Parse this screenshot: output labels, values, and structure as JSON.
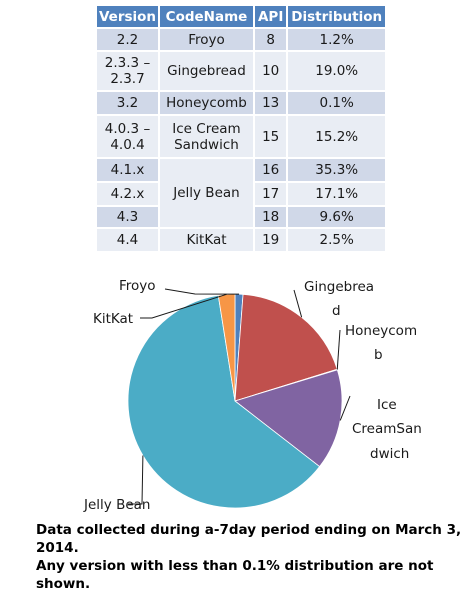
{
  "table": {
    "headers": [
      "Version",
      "CodeName",
      "API",
      "Distribution"
    ],
    "rows": [
      {
        "version": "2.2",
        "codename": "Froyo",
        "api": "8",
        "distribution": "1.2%"
      },
      {
        "version": "2.3.3 –\n2.3.7",
        "codename": "Gingebread",
        "api": "10",
        "distribution": "19.0%"
      },
      {
        "version": "3.2",
        "codename": "Honeycomb",
        "api": "13",
        "distribution": "0.1%"
      },
      {
        "version": "4.0.3 –\n4.0.4",
        "codename": "Ice Cream\nSandwich",
        "api": "15",
        "distribution": "15.2%"
      },
      {
        "version": "4.1.x",
        "codename": "Jelly Bean",
        "api": "16",
        "distribution": "35.3%"
      },
      {
        "version": "4.2.x",
        "codename": "",
        "api": "17",
        "distribution": "17.1%"
      },
      {
        "version": "4.3",
        "codename": "",
        "api": "18",
        "distribution": "9.6%"
      },
      {
        "version": "4.4",
        "codename": "KitKat",
        "api": "19",
        "distribution": "2.5%"
      }
    ]
  },
  "chart_data": {
    "type": "pie",
    "categories": [
      "Froyo",
      "Gingebread",
      "Honeycomb",
      "Ice Cream Sandwich",
      "Jelly Bean",
      "KitKat"
    ],
    "values": [
      1.2,
      19.0,
      0.1,
      15.2,
      62.0,
      2.5
    ],
    "labels": {
      "froyo": "Froyo",
      "gingebread": [
        "Gingebrea",
        "d"
      ],
      "honeycomb": [
        "Honeycom",
        "b"
      ],
      "ice_cream": [
        "Ice",
        "CreamSan",
        "dwich"
      ],
      "jelly_bean": "Jelly Bean",
      "kitkat": "KitKat"
    },
    "colors": [
      "#4f81bd",
      "#c0504d",
      "#9bbb59",
      "#8064a2",
      "#4bacc6",
      "#f79646"
    ],
    "legend": "none"
  },
  "footnote": {
    "line1": "Data collected during a-7day period ending on March 3, 2014.",
    "line2": "Any version with less than 0.1% distribution are not shown."
  }
}
